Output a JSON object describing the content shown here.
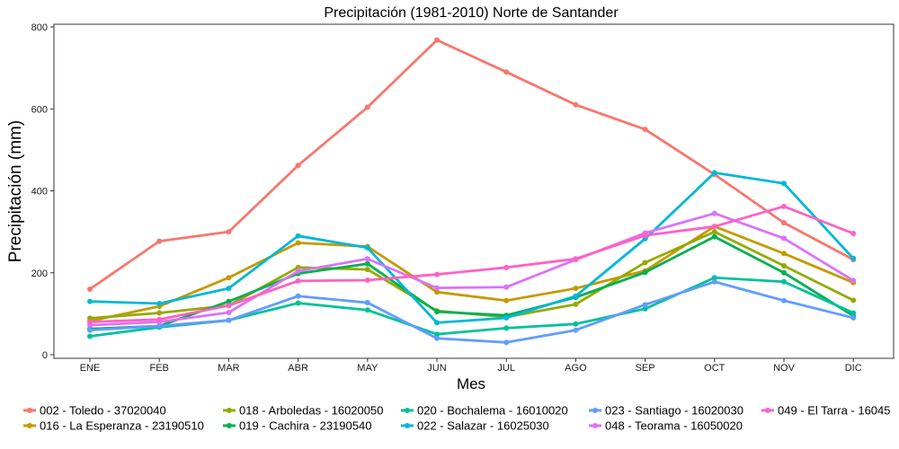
{
  "chart_data": {
    "type": "line",
    "title": "Precipitación (1981-2010)  Norte de Santander",
    "xlabel": "Mes",
    "ylabel": "Precipitación (mm)",
    "categories": [
      "ENE",
      "FEB",
      "MAR",
      "ABR",
      "MAY",
      "JUN",
      "JUL",
      "AGO",
      "SEP",
      "OCT",
      "NOV",
      "DIC"
    ],
    "ylim": [
      0,
      800
    ],
    "yticks": [
      0,
      200,
      400,
      600,
      800
    ],
    "grid": false,
    "legend_position": "bottom",
    "series": [
      {
        "name": "002 - Toledo - 37020040",
        "color": "#F8766D",
        "values": [
          160,
          277,
          300,
          462,
          604,
          768,
          690,
          610,
          550,
          440,
          322,
          232
        ]
      },
      {
        "name": "016 - La Esperanza - 23190510",
        "color": "#C49A00",
        "values": [
          82,
          118,
          188,
          273,
          264,
          153,
          132,
          162,
          205,
          313,
          247,
          176
        ]
      },
      {
        "name": "018 - Arboledas - 16020050",
        "color": "#94AA00",
        "values": [
          89,
          102,
          120,
          213,
          208,
          107,
          92,
          123,
          225,
          300,
          217,
          133
        ]
      },
      {
        "name": "019 - Cachira - 23190540",
        "color": "#00B050",
        "values": [
          63,
          70,
          130,
          198,
          222,
          105,
          96,
          140,
          201,
          288,
          200,
          95
        ]
      },
      {
        "name": "020 - Bochalema - 16010020",
        "color": "#00C19A",
        "values": [
          45,
          67,
          84,
          126,
          109,
          50,
          65,
          75,
          112,
          188,
          178,
          102
        ]
      },
      {
        "name": "022 - Salazar - 16025030",
        "color": "#00B8D6",
        "values": [
          130,
          125,
          162,
          290,
          261,
          78,
          90,
          143,
          283,
          444,
          418,
          235
        ]
      },
      {
        "name": "023 - Santiago - 16020030",
        "color": "#619CFF",
        "values": [
          60,
          70,
          84,
          143,
          127,
          40,
          30,
          60,
          122,
          178,
          132,
          90
        ]
      },
      {
        "name": "048 - Teorama - 16050020",
        "color": "#DB72FB",
        "values": [
          72,
          80,
          103,
          204,
          234,
          163,
          165,
          232,
          297,
          345,
          284,
          181
        ]
      },
      {
        "name": "049 - El Tarra - 16045",
        "color": "#FF61C3",
        "values": [
          80,
          86,
          120,
          180,
          182,
          196,
          213,
          234,
          291,
          313,
          362,
          296
        ]
      }
    ]
  },
  "legend_rows": [
    [
      0,
      2,
      4,
      6,
      8
    ],
    [
      1,
      3,
      5,
      7
    ]
  ]
}
